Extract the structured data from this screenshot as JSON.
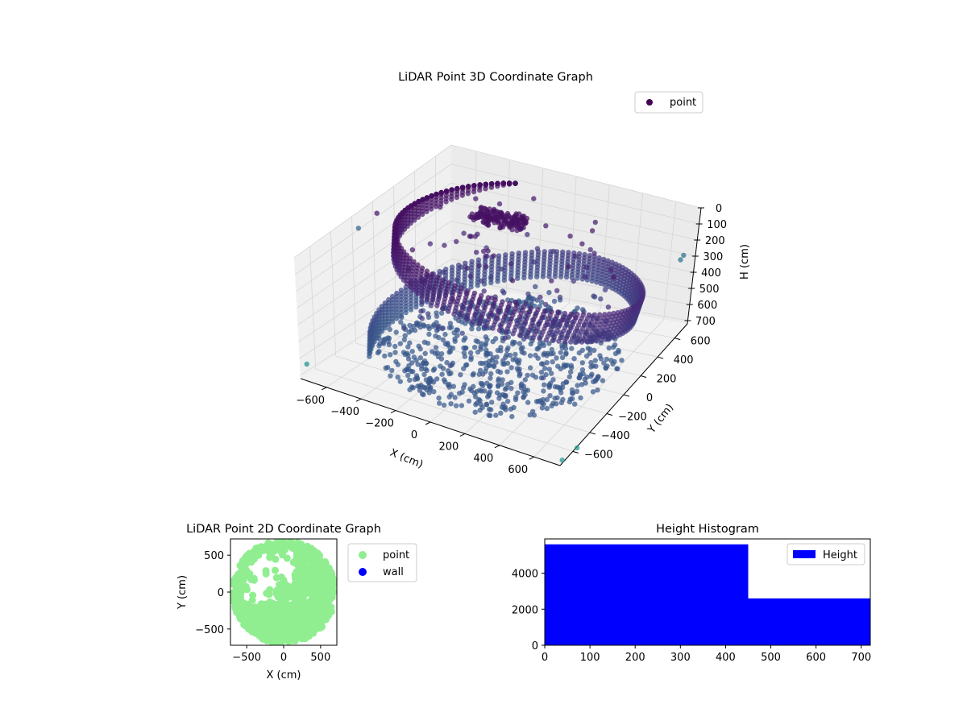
{
  "chart_data": [
    {
      "type": "scatter",
      "projection": "3d",
      "title": "LiDAR Point 3D Coordinate Graph",
      "xlabel": "X (cm)",
      "ylabel": "Y (cm)",
      "zlabel": "H (cm)",
      "xlim": [
        -750,
        750
      ],
      "ylim": [
        -750,
        750
      ],
      "zlim": [
        720,
        0
      ],
      "z_axis_inverted": true,
      "x_ticks": [
        "−600",
        "−400",
        "−200",
        "0",
        "200",
        "400",
        "600"
      ],
      "y_ticks": [
        "−600",
        "−400",
        "−200",
        "0",
        "200",
        "400",
        "600"
      ],
      "z_ticks": [
        "0",
        "100",
        "200",
        "300",
        "400",
        "500",
        "600",
        "700"
      ],
      "legend": {
        "position": "top-right",
        "entries": [
          {
            "label": "point",
            "color": "#440154"
          }
        ]
      },
      "colormap": "viridis",
      "grid": true,
      "series": [
        {
          "name": "point",
          "description_shape": "spiral ramp of points rising from the floor to the ceiling plus scattered interior points",
          "spiral": {
            "radius_cm": 680,
            "z_start_cm": 720,
            "z_end_cm": 0,
            "turns": 1.25,
            "column_height_cm": 140
          },
          "floor_disk": {
            "radius_cm": 650,
            "z_cm": 690
          },
          "top_cluster": {
            "x_cm": -180,
            "y_cm": 140,
            "z_cm": 10,
            "spread_cm": 130
          },
          "outliers": [
            {
              "x": -720,
              "y": -200,
              "z": 60
            },
            {
              "x": -700,
              "y": -60,
              "z": 30
            },
            {
              "x": 720,
              "y": 560,
              "z": 210
            },
            {
              "x": 700,
              "y": 600,
              "z": 260
            },
            {
              "x": -740,
              "y": -700,
              "z": 650
            },
            {
              "x": 760,
              "y": -600,
              "z": 700
            },
            {
              "x": 740,
              "y": -720,
              "z": 710
            }
          ]
        }
      ]
    },
    {
      "type": "scatter",
      "title": "LiDAR Point 2D Coordinate Graph",
      "xlabel": "X (cm)",
      "ylabel": "Y (cm)",
      "xlim": [
        -720,
        720
      ],
      "ylim": [
        -720,
        720
      ],
      "x_ticks": [
        "−500",
        "0",
        "500"
      ],
      "y_ticks": [
        "−500",
        "0",
        "500"
      ],
      "legend": {
        "position": "outside-right",
        "entries": [
          {
            "label": "point",
            "color": "#90ee90"
          },
          {
            "label": "wall",
            "color": "#0000ff"
          }
        ]
      },
      "series": [
        {
          "name": "point",
          "color": "#90ee90",
          "description_shape": "top-down view: filled disk of radius about 650 cm with gaps in upper-left"
        },
        {
          "name": "wall",
          "color": "#0000ff",
          "values": []
        }
      ]
    },
    {
      "type": "bar",
      "title": "Height Histogram",
      "xlim": [
        0,
        720
      ],
      "ylim": [
        0,
        5900
      ],
      "x_ticks": [
        "0",
        "100",
        "200",
        "300",
        "400",
        "500",
        "600",
        "700"
      ],
      "y_ticks": [
        "0",
        "2000",
        "4000"
      ],
      "legend": {
        "position": "top-right",
        "entries": [
          {
            "label": "Height",
            "color": "#0000ff"
          }
        ]
      },
      "bins": [
        {
          "from": 0,
          "to": 450,
          "count": 5600
        },
        {
          "from": 450,
          "to": 720,
          "count": 2600
        }
      ],
      "color": "#0000ff"
    }
  ]
}
